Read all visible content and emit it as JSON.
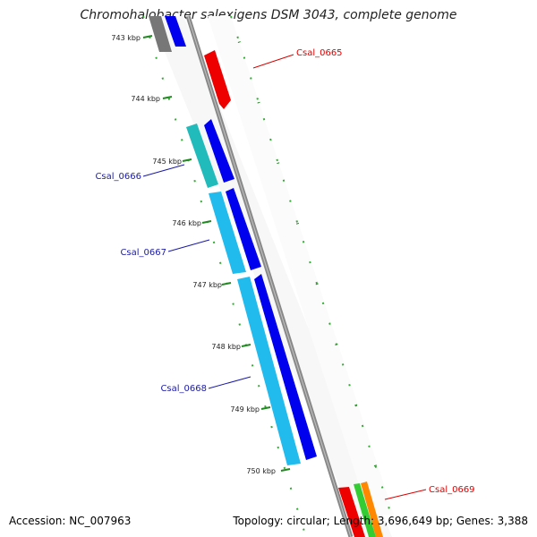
{
  "title": "Chromohalobacter salexigens DSM 3043, complete genome",
  "footer": {
    "accession": "Accession: NC_007963",
    "topology": "Topology: circular; Length: 3,696,649 bp; Genes: 3,388"
  },
  "ticks": [
    "743 kbp",
    "744 kbp",
    "745 kbp",
    "746 kbp",
    "747 kbp",
    "748 kbp",
    "749 kbp",
    "750 kbp"
  ],
  "gene_labels": [
    {
      "text": "Csal_0665",
      "color": "#dd0000"
    },
    {
      "text": "Csal_0666",
      "color": "#1a1aa6"
    },
    {
      "text": "Csal_0667",
      "color": "#1a1aa6"
    },
    {
      "text": "Csal_0668",
      "color": "#1a1aa6"
    },
    {
      "text": "Csal_0669",
      "color": "#dd0000"
    }
  ],
  "colors": {
    "backbone": "#888888",
    "tick_mark": "#228822",
    "forward_gene": "#0000ee",
    "reverse_gene": "#dd0000",
    "cds_light_blue": "#22bbee",
    "cds_cyan": "#22bbbb",
    "rna_green": "#33cc33",
    "rna_orange": "#ff8800",
    "gray_gene": "#777777"
  }
}
